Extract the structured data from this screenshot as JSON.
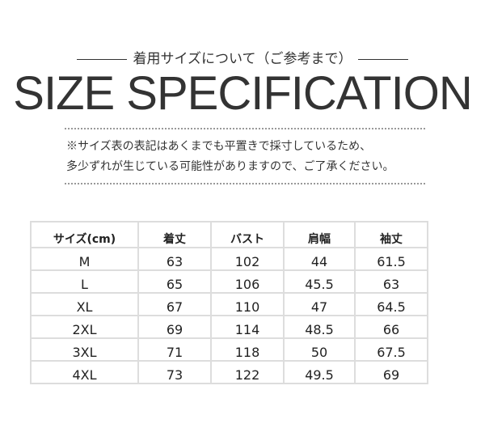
{
  "subtitle": "着用サイズについて（ご参考まで）",
  "title": "SIZE SPECIFICATION",
  "note": [
    "※サイズ表の表記はあくまでも平置きで採寸しているため、",
    "多少ずれが生じている可能性がありますので、ご了承ください。"
  ],
  "table": {
    "headers": [
      "サイズ(cm)",
      "着丈",
      "バスト",
      "肩幅",
      "袖丈"
    ],
    "rows": [
      [
        "M",
        "63",
        "102",
        "44",
        "61.5"
      ],
      [
        "L",
        "65",
        "106",
        "45.5",
        "63"
      ],
      [
        "XL",
        "67",
        "110",
        "47",
        "64.5"
      ],
      [
        "2XL",
        "69",
        "114",
        "48.5",
        "66"
      ],
      [
        "3XL",
        "71",
        "118",
        "50",
        "67.5"
      ],
      [
        "4XL",
        "73",
        "122",
        "49.5",
        "69"
      ]
    ]
  }
}
